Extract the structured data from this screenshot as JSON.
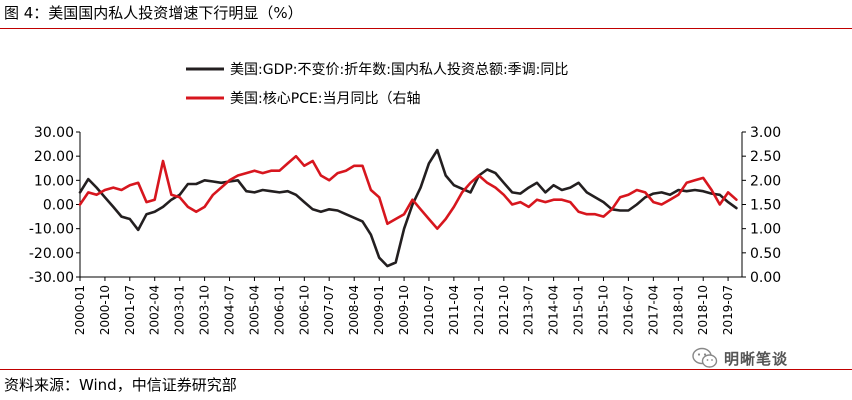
{
  "figure": {
    "title": "图 4：美国国内私人投资增速下行明显（%）",
    "source": "资料来源：Wind，中信证券研究部",
    "watermark": "明晰笔谈",
    "watermark_icon": "wechat-icon"
  },
  "chart_data": {
    "type": "line",
    "grid": false,
    "legend_position": "top-left",
    "y_left": {
      "lim": [
        -30,
        30
      ],
      "ticks": [
        "30.00",
        "20.00",
        "10.00",
        "0.00",
        "-10.00",
        "-20.00",
        "-30.00"
      ],
      "tick_values": [
        30,
        20,
        10,
        0,
        -10,
        -20,
        -30
      ]
    },
    "y_right": {
      "lim": [
        0,
        3
      ],
      "ticks": [
        "3.00",
        "2.50",
        "2.00",
        "1.50",
        "1.00",
        "0.50",
        "0.00"
      ],
      "tick_values": [
        3,
        2.5,
        2,
        1.5,
        1,
        0.5,
        0
      ]
    },
    "x_ticks": [
      "2000-01",
      "2000-10",
      "2001-07",
      "2002-04",
      "2003-01",
      "2003-10",
      "2004-07",
      "2005-04",
      "2006-01",
      "2006-10",
      "2007-07",
      "2008-04",
      "2009-01",
      "2009-10",
      "2010-07",
      "2011-04",
      "2012-01",
      "2012-10",
      "2013-07",
      "2014-04",
      "2015-01",
      "2015-10",
      "2016-07",
      "2017-04",
      "2018-01",
      "2018-10",
      "2019-07"
    ],
    "series": [
      {
        "name": "美国:GDP:不变价:折年数:国内私人投资总额:季调:同比",
        "axis": "left",
        "color": "#231f20",
        "x": [
          "2000-01",
          "2000-04",
          "2000-07",
          "2000-10",
          "2001-01",
          "2001-04",
          "2001-07",
          "2001-10",
          "2002-01",
          "2002-04",
          "2002-07",
          "2002-10",
          "2003-01",
          "2003-04",
          "2003-07",
          "2003-10",
          "2004-01",
          "2004-04",
          "2004-07",
          "2004-10",
          "2005-01",
          "2005-04",
          "2005-07",
          "2005-10",
          "2006-01",
          "2006-04",
          "2006-07",
          "2006-10",
          "2007-01",
          "2007-04",
          "2007-07",
          "2007-10",
          "2008-01",
          "2008-04",
          "2008-07",
          "2008-10",
          "2009-01",
          "2009-04",
          "2009-07",
          "2009-10",
          "2010-01",
          "2010-04",
          "2010-07",
          "2010-10",
          "2011-01",
          "2011-04",
          "2011-07",
          "2011-10",
          "2012-01",
          "2012-04",
          "2012-07",
          "2012-10",
          "2013-01",
          "2013-04",
          "2013-07",
          "2013-10",
          "2014-01",
          "2014-04",
          "2014-07",
          "2014-10",
          "2015-01",
          "2015-04",
          "2015-07",
          "2015-10",
          "2016-01",
          "2016-04",
          "2016-07",
          "2016-10",
          "2017-01",
          "2017-04",
          "2017-07",
          "2017-10",
          "2018-01",
          "2018-04",
          "2018-07",
          "2018-10",
          "2019-01",
          "2019-04",
          "2019-07",
          "2019-10"
        ],
        "values": [
          5,
          10.5,
          7,
          3,
          -1,
          -5,
          -6,
          -10.5,
          -4,
          -3,
          -1,
          2,
          4,
          8.5,
          8.5,
          10,
          9.5,
          9,
          9.5,
          10,
          5.5,
          5,
          6,
          5.5,
          5,
          5.5,
          4,
          1,
          -2,
          -3,
          -2,
          -2.5,
          -4,
          -5.5,
          -7,
          -12.5,
          -22,
          -25.5,
          -24,
          -10,
          0,
          7,
          17,
          22.5,
          12,
          8,
          6.5,
          5,
          12,
          14.5,
          13,
          9,
          5,
          4.5,
          7,
          9,
          5,
          8,
          6,
          7,
          9,
          5,
          3,
          1,
          -2,
          -2.5,
          -2.5,
          0,
          3,
          4.5,
          5,
          4,
          6,
          5.5,
          6,
          5.5,
          4.5,
          4,
          1,
          -1.5
        ]
      },
      {
        "name": "美国:核心PCE:当月同比（右轴",
        "axis": "right",
        "color": "#d7161e",
        "x": [
          "2000-01",
          "2000-04",
          "2000-07",
          "2000-10",
          "2001-01",
          "2001-04",
          "2001-07",
          "2001-10",
          "2002-01",
          "2002-04",
          "2002-07",
          "2002-10",
          "2003-01",
          "2003-04",
          "2003-07",
          "2003-10",
          "2004-01",
          "2004-04",
          "2004-07",
          "2004-10",
          "2005-01",
          "2005-04",
          "2005-07",
          "2005-10",
          "2006-01",
          "2006-04",
          "2006-07",
          "2006-10",
          "2007-01",
          "2007-04",
          "2007-07",
          "2007-10",
          "2008-01",
          "2008-04",
          "2008-07",
          "2008-10",
          "2009-01",
          "2009-04",
          "2009-07",
          "2009-10",
          "2010-01",
          "2010-04",
          "2010-07",
          "2010-10",
          "2011-01",
          "2011-04",
          "2011-07",
          "2011-10",
          "2012-01",
          "2012-04",
          "2012-07",
          "2012-10",
          "2013-01",
          "2013-04",
          "2013-07",
          "2013-10",
          "2014-01",
          "2014-04",
          "2014-07",
          "2014-10",
          "2015-01",
          "2015-04",
          "2015-07",
          "2015-10",
          "2016-01",
          "2016-04",
          "2016-07",
          "2016-10",
          "2017-01",
          "2017-04",
          "2017-07",
          "2017-10",
          "2018-01",
          "2018-04",
          "2018-07",
          "2018-10",
          "2019-01",
          "2019-04",
          "2019-07",
          "2019-10"
        ],
        "values": [
          1.5,
          1.75,
          1.7,
          1.8,
          1.85,
          1.8,
          1.9,
          1.95,
          1.55,
          1.6,
          2.4,
          1.7,
          1.65,
          1.45,
          1.35,
          1.45,
          1.7,
          1.85,
          2.0,
          2.1,
          2.15,
          2.2,
          2.15,
          2.2,
          2.2,
          2.35,
          2.5,
          2.3,
          2.4,
          2.1,
          2.0,
          2.15,
          2.2,
          2.3,
          2.3,
          1.8,
          1.65,
          1.1,
          1.2,
          1.3,
          1.6,
          1.4,
          1.2,
          1.0,
          1.2,
          1.45,
          1.75,
          1.95,
          2.1,
          1.95,
          1.85,
          1.7,
          1.5,
          1.55,
          1.45,
          1.6,
          1.55,
          1.6,
          1.6,
          1.55,
          1.35,
          1.3,
          1.3,
          1.25,
          1.4,
          1.65,
          1.7,
          1.8,
          1.75,
          1.55,
          1.5,
          1.6,
          1.7,
          1.95,
          2.0,
          2.05,
          1.8,
          1.5,
          1.75,
          1.6
        ]
      }
    ]
  }
}
